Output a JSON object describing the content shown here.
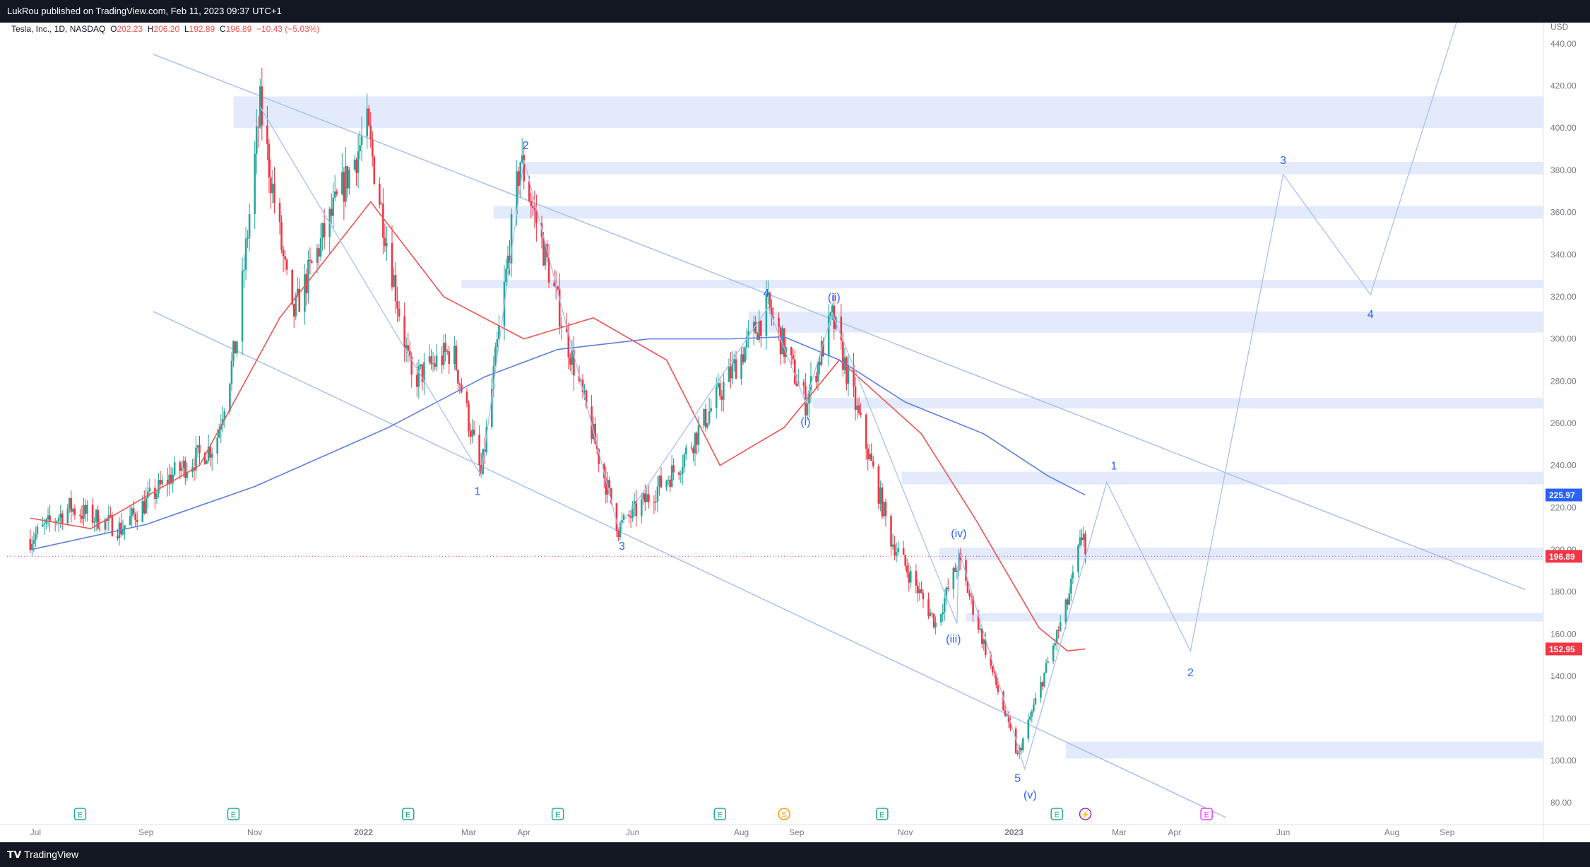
{
  "header": {
    "publisher_text": "LukRou published on TradingView.com, Feb 11, 2023 09:37 UTC+1"
  },
  "legend": {
    "symbol": "Tesla, Inc., 1D, NASDAQ",
    "o_label": "O",
    "o": "202.23",
    "h_label": "H",
    "h": "206.20",
    "l_label": "L",
    "l": "192.89",
    "c_label": "C",
    "c": "196.89",
    "change": "−10.43 (−5.03%)"
  },
  "footer": {
    "brand": "TradingView"
  },
  "colors": {
    "up": "#26a69a",
    "down": "#f23645",
    "ma50": "#ef5350",
    "ma200": "#5b7fe0",
    "zones": "#e3eafc",
    "channel": "#a9c0f5",
    "label": "#2962ff"
  },
  "chart_data": {
    "type": "candlestick",
    "currency_label": "USD",
    "y_ticks": [
      "440.00",
      "420.00",
      "400.00",
      "380.00",
      "360.00",
      "340.00",
      "320.00",
      "300.00",
      "280.00",
      "260.00",
      "240.00",
      "220.00",
      "200.00",
      "180.00",
      "160.00",
      "140.00",
      "120.00",
      "100.00",
      "80.00"
    ],
    "ylim": [
      72,
      450
    ],
    "x_ticks": [
      "Jul",
      "Sep",
      "Nov",
      "2022",
      "Mar",
      "Apr",
      "Jun",
      "Aug",
      "Sep",
      "Nov",
      "2023",
      "Mar",
      "Apr",
      "Jun",
      "Aug",
      "Sep"
    ],
    "price_badges": [
      {
        "value": "225.97",
        "color": "#2962ff"
      },
      {
        "value": "196.89",
        "color": "#f23645"
      },
      {
        "value": "152.95",
        "color": "#f23645"
      }
    ],
    "current_price": 196.89,
    "price_path": [
      [
        "2021-06-28",
        205
      ],
      [
        "2021-07-20",
        220
      ],
      [
        "2021-08-18",
        210
      ],
      [
        "2021-09-15",
        235
      ],
      [
        "2021-10-10",
        250
      ],
      [
        "2021-10-22",
        300
      ],
      [
        "2021-11-04",
        410
      ],
      [
        "2021-11-22",
        310
      ],
      [
        "2021-12-10",
        350
      ],
      [
        "2022-01-03",
        400
      ],
      [
        "2022-01-28",
        280
      ],
      [
        "2022-02-20",
        295
      ],
      [
        "2022-03-08",
        235
      ],
      [
        "2022-03-30",
        385
      ],
      [
        "2022-04-25",
        300
      ],
      [
        "2022-05-24",
        210
      ],
      [
        "2022-06-27",
        240
      ],
      [
        "2022-08-16",
        315
      ],
      [
        "2022-09-06",
        270
      ],
      [
        "2022-09-21",
        310
      ],
      [
        "2022-10-24",
        205
      ],
      [
        "2022-11-18",
        165
      ],
      [
        "2022-12-01",
        195
      ],
      [
        "2023-01-03",
        102
      ],
      [
        "2023-01-31",
        175
      ],
      [
        "2023-02-09",
        210
      ],
      [
        "2023-02-10",
        196.89
      ]
    ],
    "ma50": [
      [
        "2021-06-28",
        215
      ],
      [
        "2021-08-01",
        210
      ],
      [
        "2021-10-01",
        240
      ],
      [
        "2021-11-15",
        310
      ],
      [
        "2022-01-05",
        365
      ],
      [
        "2022-02-15",
        320
      ],
      [
        "2022-04-01",
        300
      ],
      [
        "2022-05-10",
        310
      ],
      [
        "2022-06-20",
        290
      ],
      [
        "2022-07-20",
        240
      ],
      [
        "2022-08-25",
        258
      ],
      [
        "2022-09-25",
        290
      ],
      [
        "2022-11-10",
        255
      ],
      [
        "2022-12-10",
        215
      ],
      [
        "2023-01-15",
        163
      ],
      [
        "2023-01-31",
        152
      ],
      [
        "2023-02-10",
        153
      ]
    ],
    "ma200": [
      [
        "2021-06-28",
        200
      ],
      [
        "2021-09-01",
        212
      ],
      [
        "2021-11-01",
        230
      ],
      [
        "2022-01-15",
        258
      ],
      [
        "2022-03-10",
        282
      ],
      [
        "2022-04-20",
        295
      ],
      [
        "2022-06-10",
        300
      ],
      [
        "2022-07-25",
        300
      ],
      [
        "2022-08-25",
        301
      ],
      [
        "2022-09-25",
        290
      ],
      [
        "2022-11-01",
        270
      ],
      [
        "2022-12-15",
        255
      ],
      [
        "2023-01-20",
        235
      ],
      [
        "2023-02-10",
        226
      ]
    ],
    "resistance_zones": [
      [
        "2021-10-20",
        400,
        415
      ],
      [
        "2022-04-01",
        378,
        384
      ],
      [
        "2022-03-15",
        357,
        363
      ],
      [
        "2022-02-25",
        324,
        328
      ],
      [
        "2022-08-05",
        303,
        313
      ],
      [
        "2022-09-10",
        267,
        272
      ],
      [
        "2022-10-30",
        231,
        237
      ],
      [
        "2022-11-20",
        195,
        201
      ],
      [
        "2022-12-05",
        166,
        170
      ],
      [
        "2023-01-30",
        101,
        109
      ]
    ],
    "channel_lines": [
      [
        [
          "2021-09-05",
          435
        ],
        [
          "2023-10-15",
          181
        ]
      ],
      [
        [
          "2021-09-05",
          313
        ],
        [
          "2023-04-30",
          73
        ]
      ]
    ],
    "wave_path": [
      [
        "2021-11-04",
        410
      ],
      [
        "2022-03-08",
        235
      ],
      [
        "2022-04-01",
        385
      ],
      [
        "2022-05-24",
        210
      ],
      [
        "2022-08-16",
        315
      ],
      [
        "2022-09-06",
        270
      ],
      [
        "2022-09-21",
        312
      ],
      [
        "2022-11-30",
        165
      ],
      [
        "2022-12-01",
        200
      ],
      [
        "2023-01-07",
        96
      ],
      [
        "2023-02-22",
        232
      ],
      [
        "2023-04-10",
        152
      ],
      [
        "2023-06-01",
        378
      ],
      [
        "2023-07-20",
        321
      ],
      [
        "2023-09-10",
        460
      ]
    ],
    "wave_labels": [
      {
        "text": "1",
        "date": "2022-03-06",
        "price": 226
      },
      {
        "text": "2",
        "date": "2022-04-02",
        "price": 390
      },
      {
        "text": "3",
        "date": "2022-05-26",
        "price": 200
      },
      {
        "text": "4",
        "date": "2022-08-15",
        "price": 320
      },
      {
        "text": "(ii)",
        "date": "2022-09-22",
        "price": 318
      },
      {
        "text": "(i)",
        "date": "2022-09-06",
        "price": 259
      },
      {
        "text": "(iv)",
        "date": "2022-12-01",
        "price": 206
      },
      {
        "text": "(iii)",
        "date": "2022-11-28",
        "price": 156
      },
      {
        "text": "5",
        "date": "2023-01-03",
        "price": 90
      },
      {
        "text": "(v)",
        "date": "2023-01-10",
        "price": 82
      },
      {
        "text": "1",
        "date": "2023-02-26",
        "price": 238
      },
      {
        "text": "2",
        "date": "2023-04-10",
        "price": 140
      },
      {
        "text": "3",
        "date": "2023-06-01",
        "price": 383
      },
      {
        "text": "4",
        "date": "2023-07-20",
        "price": 310
      }
    ],
    "event_markers": [
      {
        "label": "E",
        "date": "2021-07-26",
        "color": "#22ab94"
      },
      {
        "label": "E",
        "date": "2021-10-20",
        "color": "#22ab94"
      },
      {
        "label": "E",
        "date": "2022-01-26",
        "color": "#22ab94"
      },
      {
        "label": "E",
        "date": "2022-04-20",
        "color": "#22ab94"
      },
      {
        "label": "E",
        "date": "2022-07-20",
        "color": "#22ab94"
      },
      {
        "label": "S",
        "date": "2022-08-25",
        "color": "#ff9800"
      },
      {
        "label": "E",
        "date": "2022-10-19",
        "color": "#22ab94"
      },
      {
        "label": "E",
        "date": "2023-01-25",
        "color": "#22ab94"
      },
      {
        "label": "⚡",
        "date": "2023-02-10",
        "color": "#9c27b0"
      },
      {
        "label": "E",
        "date": "2023-04-19",
        "color": "#e040fb"
      }
    ]
  }
}
